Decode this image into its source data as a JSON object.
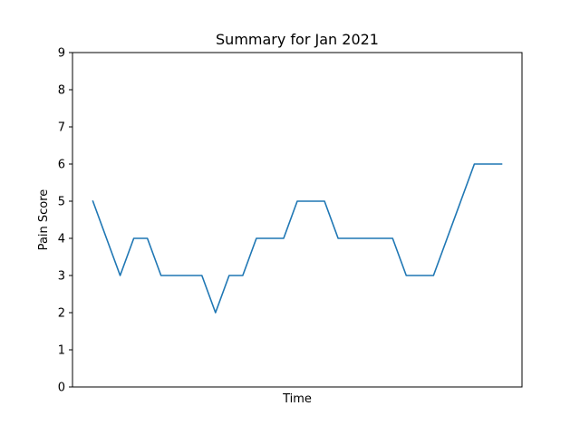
{
  "chart_data": {
    "type": "line",
    "title": "Summary for Jan 2021",
    "xlabel": "Time",
    "ylabel": "Pain Score",
    "ylim": [
      0,
      9
    ],
    "yticks": [
      0,
      1,
      2,
      3,
      4,
      5,
      6,
      7,
      8,
      9
    ],
    "x_tick_labels_shown": false,
    "grid": false,
    "legend": "none",
    "series": [
      {
        "color": "#1f77b4",
        "values": [
          5,
          4,
          3,
          4,
          4,
          3,
          3,
          3,
          3,
          2,
          3,
          3,
          4,
          4,
          4,
          5,
          5,
          5,
          4,
          4,
          4,
          4,
          4,
          3,
          3,
          3,
          4,
          5,
          6,
          6,
          6
        ]
      }
    ]
  }
}
